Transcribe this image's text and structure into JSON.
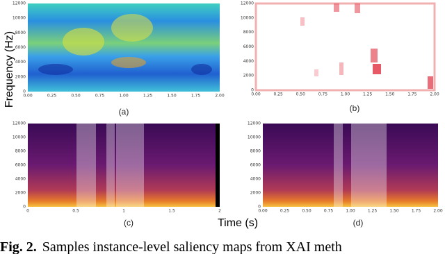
{
  "figure": {
    "y_label": "Frequency (Hz)",
    "x_label": "Time (s)",
    "caption": {
      "number": "Fig. 2.",
      "text": "Samples instance-level saliency maps from XAI meth"
    },
    "panels": [
      {
        "label": "(a)",
        "yticks": [
          "0",
          "2000",
          "4000",
          "6000",
          "8000",
          "10000",
          "12000"
        ],
        "xticks": [
          "0.00",
          "0.25",
          "0.50",
          "0.75",
          "1.00",
          "1.25",
          "1.50",
          "1.75",
          "2.00"
        ]
      },
      {
        "label": "(b)",
        "yticks": [
          "0",
          "2000",
          "4000",
          "6000",
          "8000",
          "10000",
          "12000"
        ],
        "xticks": [
          "0.00",
          "0.25",
          "0.50",
          "0.75",
          "1.00",
          "1.25",
          "1.50",
          "1.75",
          "2.00"
        ]
      },
      {
        "label": "(c)",
        "yticks": [
          "0",
          "2000",
          "4000",
          "6000",
          "8000",
          "10000",
          "12000"
        ],
        "xticks": [
          "0",
          "0.5",
          "1",
          "1.5",
          "2"
        ]
      },
      {
        "label": "(d)",
        "yticks": [
          "0",
          "2000",
          "4000",
          "6000",
          "8000",
          "10000",
          "12000"
        ],
        "xticks": [
          "0.00",
          "0.25",
          "0.50",
          "0.75",
          "1.00",
          "1.25",
          "1.50",
          "1.75",
          "2.00"
        ]
      }
    ]
  }
}
